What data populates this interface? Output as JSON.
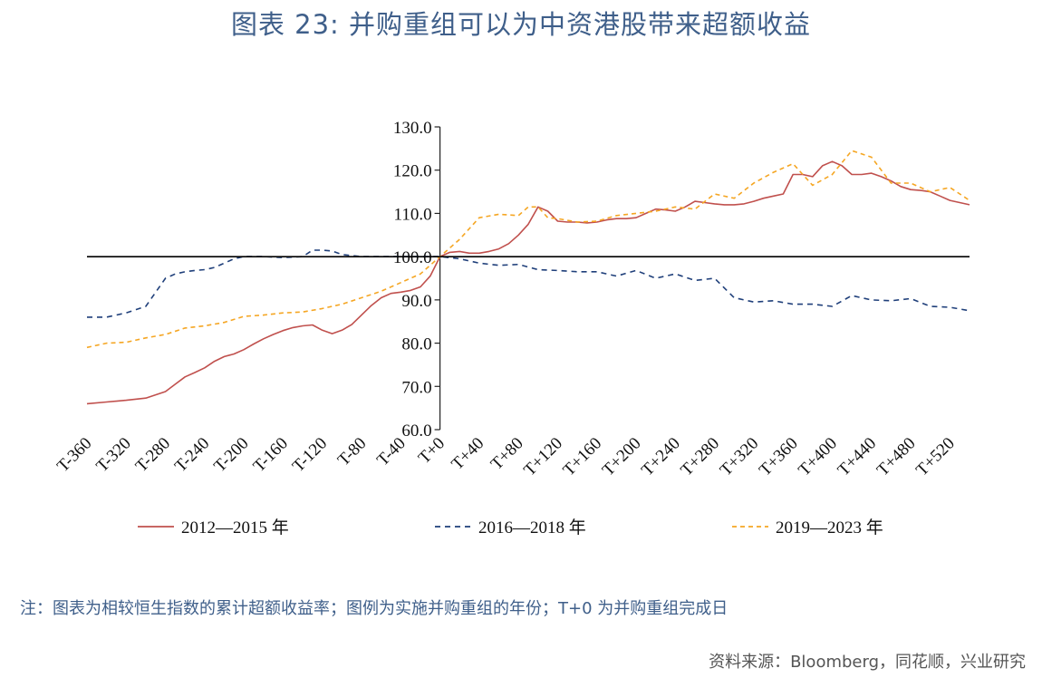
{
  "title": "图表 23: 并购重组可以为中资港股带来超额收益",
  "note": "注：图表为相较恒生指数的累计超额收益率；图例为实施并购重组的年份；T+0 为并购重组完成日",
  "source": "资料来源：Bloomberg，同花顺，兴业研究",
  "colors": {
    "series_2012": "#c0504d",
    "series_2016": "#1f3f7a",
    "series_2019": "#f5a623",
    "title": "#3f5f8a"
  },
  "chart_data": {
    "type": "line",
    "ylim": [
      60,
      130
    ],
    "yticks": [
      "130.0",
      "120.0",
      "110.0",
      "100.0",
      "90.0",
      "80.0",
      "70.0",
      "60.0"
    ],
    "ytick_values": [
      130,
      120,
      110,
      100,
      90,
      80,
      70,
      60
    ],
    "baseline": 100,
    "xlim": [
      -360,
      540
    ],
    "xticks": [
      "T-360",
      "T-320",
      "T-280",
      "T-240",
      "T-200",
      "T-160",
      "T-120",
      "T-80",
      "T-40",
      "T+0",
      "T+40",
      "T+80",
      "T+120",
      "T+160",
      "T+200",
      "T+240",
      "T+280",
      "T+320",
      "T+360",
      "T+400",
      "T+440",
      "T+480",
      "T+520"
    ],
    "xtick_values": [
      -360,
      -320,
      -280,
      -240,
      -200,
      -160,
      -120,
      -80,
      -40,
      0,
      40,
      80,
      120,
      160,
      200,
      240,
      280,
      320,
      360,
      400,
      440,
      480,
      520
    ],
    "legend_position": "bottom",
    "series": [
      {
        "name": "2012—2015 年",
        "style": "solid",
        "x": [
          -360,
          -340,
          -320,
          -300,
          -280,
          -270,
          -260,
          -250,
          -240,
          -230,
          -220,
          -210,
          -200,
          -190,
          -180,
          -170,
          -160,
          -150,
          -140,
          -130,
          -120,
          -110,
          -100,
          -90,
          -80,
          -70,
          -60,
          -50,
          -40,
          -30,
          -20,
          -10,
          0,
          10,
          20,
          30,
          40,
          50,
          60,
          70,
          80,
          90,
          100,
          110,
          120,
          130,
          140,
          150,
          160,
          170,
          180,
          190,
          200,
          210,
          220,
          230,
          240,
          250,
          260,
          270,
          280,
          290,
          300,
          310,
          320,
          330,
          340,
          350,
          360,
          370,
          380,
          390,
          400,
          410,
          420,
          430,
          440,
          450,
          460,
          470,
          480,
          490,
          500,
          510,
          520,
          530,
          540
        ],
        "y": [
          66.0,
          66.4,
          66.8,
          67.3,
          68.8,
          70.5,
          72.2,
          73.2,
          74.3,
          75.8,
          76.9,
          77.5,
          78.5,
          79.8,
          81.0,
          82.0,
          82.9,
          83.6,
          84.0,
          84.2,
          83.0,
          82.2,
          83.0,
          84.3,
          86.5,
          88.7,
          90.5,
          91.5,
          91.8,
          92.2,
          93.0,
          95.5,
          100.0,
          101.0,
          101.2,
          100.8,
          100.8,
          101.2,
          101.8,
          103.0,
          105.0,
          107.5,
          111.5,
          110.5,
          108.2,
          108.0,
          108.0,
          107.8,
          108.0,
          108.5,
          108.8,
          108.8,
          109.0,
          110.0,
          111.0,
          110.8,
          110.5,
          111.5,
          112.8,
          112.5,
          112.2,
          112.0,
          112.0,
          112.2,
          112.8,
          113.5,
          114.0,
          114.5,
          119.0,
          119.0,
          118.5,
          121.0,
          122.0,
          121.0,
          119.0,
          119.0,
          119.3,
          118.5,
          117.5,
          116.2,
          115.5,
          115.3,
          115.0,
          114.0,
          113.0,
          112.5,
          112.0
        ]
      },
      {
        "name": "2016—2018 年",
        "style": "dashed",
        "x": [
          -360,
          -340,
          -320,
          -300,
          -280,
          -270,
          -260,
          -250,
          -240,
          -230,
          -220,
          -210,
          -200,
          -180,
          -160,
          -140,
          -130,
          -120,
          -110,
          -100,
          -80,
          -60,
          -40,
          -20,
          0,
          20,
          40,
          60,
          80,
          100,
          120,
          140,
          160,
          180,
          200,
          220,
          240,
          260,
          280,
          300,
          320,
          340,
          360,
          380,
          400,
          420,
          440,
          460,
          480,
          500,
          520,
          540
        ],
        "y": [
          86.0,
          86.0,
          87.0,
          88.5,
          95.0,
          96.0,
          96.5,
          96.8,
          97.0,
          97.5,
          98.5,
          99.5,
          100.0,
          100.0,
          99.8,
          100.0,
          101.5,
          101.5,
          101.3,
          100.5,
          100.0,
          100.0,
          100.0,
          100.0,
          100.0,
          99.5,
          98.5,
          98.0,
          98.2,
          97.0,
          96.8,
          96.5,
          96.5,
          95.5,
          96.8,
          95.0,
          96.0,
          94.5,
          95.0,
          90.5,
          89.5,
          89.8,
          89.0,
          89.0,
          88.5,
          91.0,
          90.0,
          89.8,
          90.3,
          88.5,
          88.3,
          87.5
        ]
      },
      {
        "name": "2019—2023 年",
        "style": "dashed",
        "x": [
          -360,
          -340,
          -320,
          -300,
          -280,
          -260,
          -240,
          -220,
          -200,
          -180,
          -160,
          -140,
          -120,
          -100,
          -80,
          -60,
          -40,
          -20,
          0,
          20,
          40,
          60,
          80,
          90,
          100,
          110,
          120,
          140,
          160,
          180,
          200,
          220,
          240,
          260,
          280,
          300,
          320,
          340,
          360,
          380,
          400,
          420,
          440,
          460,
          480,
          500,
          520,
          540
        ],
        "y": [
          79.0,
          80.0,
          80.2,
          81.2,
          82.0,
          83.5,
          84.0,
          84.8,
          86.2,
          86.5,
          87.0,
          87.2,
          88.0,
          89.0,
          90.5,
          92.0,
          94.0,
          96.0,
          100.0,
          104.0,
          109.0,
          109.8,
          109.5,
          111.5,
          111.5,
          109.0,
          108.8,
          108.0,
          108.2,
          109.5,
          110.0,
          110.5,
          111.5,
          111.0,
          114.5,
          113.5,
          117.0,
          119.5,
          121.5,
          116.5,
          119.0,
          124.5,
          123.0,
          117.0,
          117.0,
          115.0,
          116.0,
          113.0
        ]
      }
    ]
  }
}
